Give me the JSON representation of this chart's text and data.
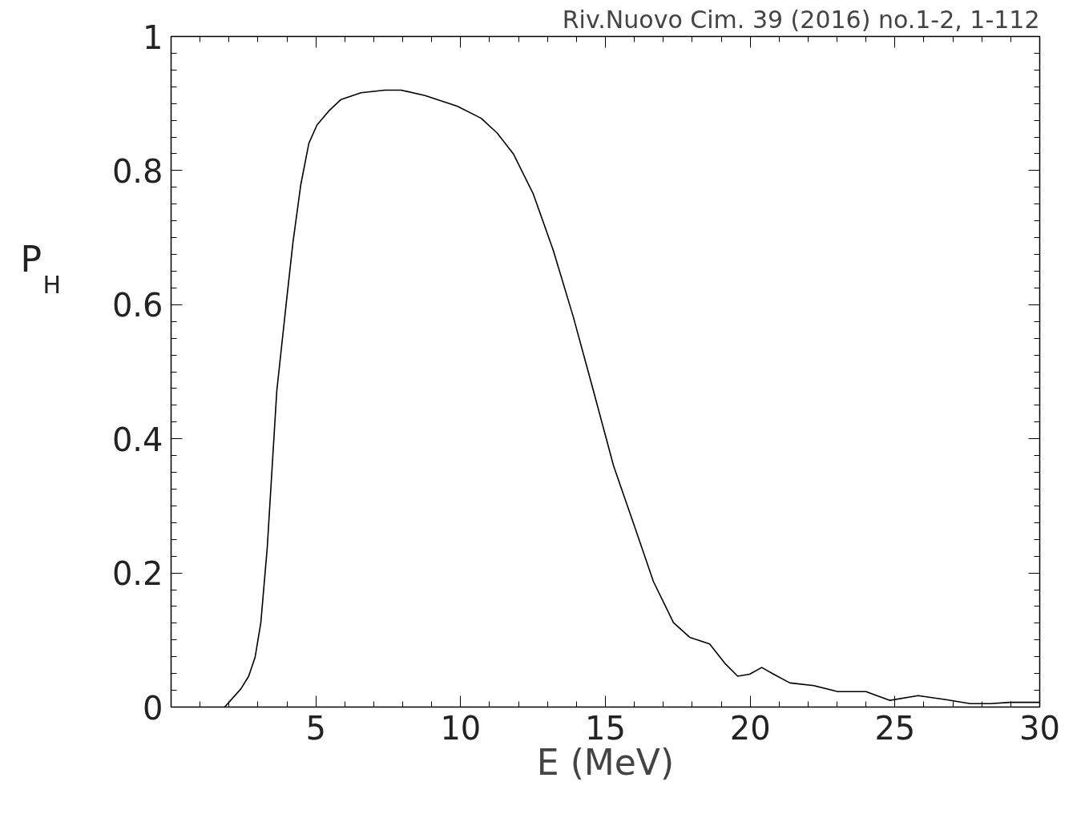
{
  "chart_data": {
    "type": "line",
    "xlabel": "E (MeV)",
    "ylabel": "P$_{H}$",
    "annotations": [
      "Riv.Nuovo Cim. 39 (2016) no.1-2, 1-112"
    ],
    "xlim": [
      0,
      30
    ],
    "ylim": [
      0,
      1
    ],
    "xticks": [
      5,
      10,
      15,
      20,
      25,
      30
    ],
    "yticks": [
      0,
      0.2,
      0.4,
      0.6,
      0.8,
      1
    ],
    "marker": "none",
    "line_style": "solid",
    "series": [
      {
        "color": "#000000",
        "x": [
          1.85,
          2.41,
          2.68,
          2.9,
          3.1,
          3.32,
          3.65,
          3.99,
          4.21,
          4.48,
          4.76,
          5.04,
          5.45,
          5.87,
          6.56,
          7.39,
          7.94,
          8.77,
          9.88,
          10.71,
          11.26,
          11.82,
          12.51,
          13.2,
          13.89,
          14.59,
          15.28,
          15.97,
          16.66,
          17.35,
          17.91,
          18.6,
          19.15,
          19.57,
          19.98,
          20.4,
          20.81,
          21.37,
          22.2,
          23.03,
          24.0,
          24.83,
          25.8,
          26.76,
          27.6,
          28.29,
          28.98,
          30
        ],
        "values": [
          0,
          0.027,
          0.046,
          0.074,
          0.126,
          0.237,
          0.471,
          0.607,
          0.693,
          0.779,
          0.841,
          0.868,
          0.889,
          0.906,
          0.916,
          0.92,
          0.92,
          0.912,
          0.896,
          0.878,
          0.856,
          0.825,
          0.765,
          0.681,
          0.582,
          0.471,
          0.36,
          0.274,
          0.187,
          0.126,
          0.104,
          0.094,
          0.064,
          0.046,
          0.049,
          0.059,
          0.049,
          0.036,
          0.032,
          0.023,
          0.023,
          0.01,
          0.017,
          0.011,
          0.005,
          0.005,
          0.007,
          0.007
        ]
      }
    ]
  }
}
